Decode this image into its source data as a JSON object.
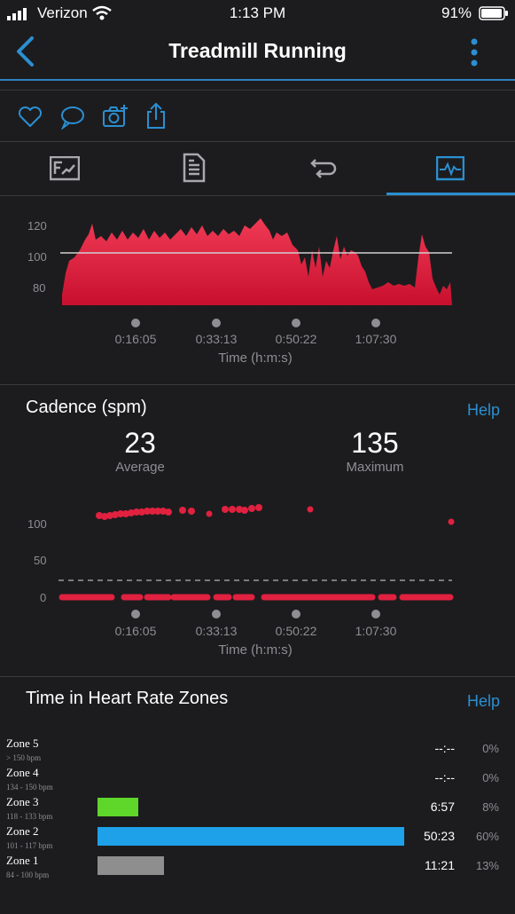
{
  "status_bar": {
    "carrier": "Verizon",
    "time": "1:13 PM",
    "battery": "91%"
  },
  "nav": {
    "title": "Treadmill Running"
  },
  "hr_chart": {
    "y_ticks": [
      "120",
      "100",
      "80"
    ],
    "x_ticks": [
      "0:16:05",
      "0:33:13",
      "0:50:22",
      "1:07:30"
    ],
    "x_label": "Time (h:m:s)"
  },
  "cadence": {
    "title": "Cadence (spm)",
    "help": "Help",
    "average_value": "23",
    "average_label": "Average",
    "maximum_value": "135",
    "maximum_label": "Maximum",
    "y_ticks": [
      "100",
      "50",
      "0"
    ],
    "x_ticks": [
      "0:16:05",
      "0:33:13",
      "0:50:22",
      "1:07:30"
    ],
    "x_label": "Time (h:m:s)"
  },
  "zones": {
    "title": "Time in Heart Rate Zones",
    "help": "Help",
    "items": [
      {
        "name": "Zone 5",
        "range": "> 150 bpm",
        "time": "--:--",
        "percent": "0%",
        "fraction": 0,
        "color": "#4cd964"
      },
      {
        "name": "Zone 4",
        "range": "134 - 150 bpm",
        "time": "--:--",
        "percent": "0%",
        "fraction": 0,
        "color": "#ff9500"
      },
      {
        "name": "Zone 3",
        "range": "118 - 133 bpm",
        "time": "6:57",
        "percent": "8%",
        "fraction": 0.08,
        "color": "#5ed62a"
      },
      {
        "name": "Zone 2",
        "range": "101 - 117 bpm",
        "time": "50:23",
        "percent": "60%",
        "fraction": 0.6,
        "color": "#1ea1e8"
      },
      {
        "name": "Zone 1",
        "range": "84 - 100 bpm",
        "time": "11:21",
        "percent": "13%",
        "fraction": 0.13,
        "color": "#8e8e8e"
      }
    ]
  },
  "colors": {
    "accent": "#2b8fd1",
    "chart_red": "#e0213f"
  },
  "icons": [
    "back-chevron-icon",
    "more-vertical-icon",
    "heart-icon",
    "comment-icon",
    "camera-add-icon",
    "share-icon",
    "summary-tab-icon",
    "details-tab-icon",
    "laps-tab-icon",
    "charts-tab-icon"
  ]
}
